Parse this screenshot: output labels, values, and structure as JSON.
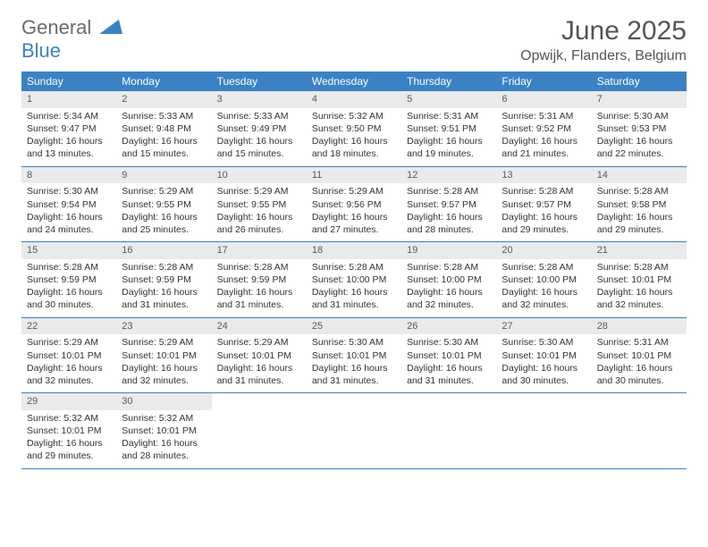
{
  "logo": {
    "word1": "General",
    "word2": "Blue"
  },
  "title": "June 2025",
  "location": "Opwijk, Flanders, Belgium",
  "colors": {
    "header_bg": "#3b82c4",
    "daynum_bg": "#e9eaeb",
    "text": "#333333"
  },
  "weekdays": [
    "Sunday",
    "Monday",
    "Tuesday",
    "Wednesday",
    "Thursday",
    "Friday",
    "Saturday"
  ],
  "days": [
    {
      "n": 1,
      "sunrise": "5:34 AM",
      "sunset": "9:47 PM",
      "dl1": "Daylight: 16 hours",
      "dl2": "and 13 minutes."
    },
    {
      "n": 2,
      "sunrise": "5:33 AM",
      "sunset": "9:48 PM",
      "dl1": "Daylight: 16 hours",
      "dl2": "and 15 minutes."
    },
    {
      "n": 3,
      "sunrise": "5:33 AM",
      "sunset": "9:49 PM",
      "dl1": "Daylight: 16 hours",
      "dl2": "and 15 minutes."
    },
    {
      "n": 4,
      "sunrise": "5:32 AM",
      "sunset": "9:50 PM",
      "dl1": "Daylight: 16 hours",
      "dl2": "and 18 minutes."
    },
    {
      "n": 5,
      "sunrise": "5:31 AM",
      "sunset": "9:51 PM",
      "dl1": "Daylight: 16 hours",
      "dl2": "and 19 minutes."
    },
    {
      "n": 6,
      "sunrise": "5:31 AM",
      "sunset": "9:52 PM",
      "dl1": "Daylight: 16 hours",
      "dl2": "and 21 minutes."
    },
    {
      "n": 7,
      "sunrise": "5:30 AM",
      "sunset": "9:53 PM",
      "dl1": "Daylight: 16 hours",
      "dl2": "and 22 minutes."
    },
    {
      "n": 8,
      "sunrise": "5:30 AM",
      "sunset": "9:54 PM",
      "dl1": "Daylight: 16 hours",
      "dl2": "and 24 minutes."
    },
    {
      "n": 9,
      "sunrise": "5:29 AM",
      "sunset": "9:55 PM",
      "dl1": "Daylight: 16 hours",
      "dl2": "and 25 minutes."
    },
    {
      "n": 10,
      "sunrise": "5:29 AM",
      "sunset": "9:55 PM",
      "dl1": "Daylight: 16 hours",
      "dl2": "and 26 minutes."
    },
    {
      "n": 11,
      "sunrise": "5:29 AM",
      "sunset": "9:56 PM",
      "dl1": "Daylight: 16 hours",
      "dl2": "and 27 minutes."
    },
    {
      "n": 12,
      "sunrise": "5:28 AM",
      "sunset": "9:57 PM",
      "dl1": "Daylight: 16 hours",
      "dl2": "and 28 minutes."
    },
    {
      "n": 13,
      "sunrise": "5:28 AM",
      "sunset": "9:57 PM",
      "dl1": "Daylight: 16 hours",
      "dl2": "and 29 minutes."
    },
    {
      "n": 14,
      "sunrise": "5:28 AM",
      "sunset": "9:58 PM",
      "dl1": "Daylight: 16 hours",
      "dl2": "and 29 minutes."
    },
    {
      "n": 15,
      "sunrise": "5:28 AM",
      "sunset": "9:59 PM",
      "dl1": "Daylight: 16 hours",
      "dl2": "and 30 minutes."
    },
    {
      "n": 16,
      "sunrise": "5:28 AM",
      "sunset": "9:59 PM",
      "dl1": "Daylight: 16 hours",
      "dl2": "and 31 minutes."
    },
    {
      "n": 17,
      "sunrise": "5:28 AM",
      "sunset": "9:59 PM",
      "dl1": "Daylight: 16 hours",
      "dl2": "and 31 minutes."
    },
    {
      "n": 18,
      "sunrise": "5:28 AM",
      "sunset": "10:00 PM",
      "dl1": "Daylight: 16 hours",
      "dl2": "and 31 minutes."
    },
    {
      "n": 19,
      "sunrise": "5:28 AM",
      "sunset": "10:00 PM",
      "dl1": "Daylight: 16 hours",
      "dl2": "and 32 minutes."
    },
    {
      "n": 20,
      "sunrise": "5:28 AM",
      "sunset": "10:00 PM",
      "dl1": "Daylight: 16 hours",
      "dl2": "and 32 minutes."
    },
    {
      "n": 21,
      "sunrise": "5:28 AM",
      "sunset": "10:01 PM",
      "dl1": "Daylight: 16 hours",
      "dl2": "and 32 minutes."
    },
    {
      "n": 22,
      "sunrise": "5:29 AM",
      "sunset": "10:01 PM",
      "dl1": "Daylight: 16 hours",
      "dl2": "and 32 minutes."
    },
    {
      "n": 23,
      "sunrise": "5:29 AM",
      "sunset": "10:01 PM",
      "dl1": "Daylight: 16 hours",
      "dl2": "and 32 minutes."
    },
    {
      "n": 24,
      "sunrise": "5:29 AM",
      "sunset": "10:01 PM",
      "dl1": "Daylight: 16 hours",
      "dl2": "and 31 minutes."
    },
    {
      "n": 25,
      "sunrise": "5:30 AM",
      "sunset": "10:01 PM",
      "dl1": "Daylight: 16 hours",
      "dl2": "and 31 minutes."
    },
    {
      "n": 26,
      "sunrise": "5:30 AM",
      "sunset": "10:01 PM",
      "dl1": "Daylight: 16 hours",
      "dl2": "and 31 minutes."
    },
    {
      "n": 27,
      "sunrise": "5:30 AM",
      "sunset": "10:01 PM",
      "dl1": "Daylight: 16 hours",
      "dl2": "and 30 minutes."
    },
    {
      "n": 28,
      "sunrise": "5:31 AM",
      "sunset": "10:01 PM",
      "dl1": "Daylight: 16 hours",
      "dl2": "and 30 minutes."
    },
    {
      "n": 29,
      "sunrise": "5:32 AM",
      "sunset": "10:01 PM",
      "dl1": "Daylight: 16 hours",
      "dl2": "and 29 minutes."
    },
    {
      "n": 30,
      "sunrise": "5:32 AM",
      "sunset": "10:01 PM",
      "dl1": "Daylight: 16 hours",
      "dl2": "and 28 minutes."
    }
  ],
  "labels": {
    "sunrise": "Sunrise:",
    "sunset": "Sunset:"
  },
  "layout": {
    "start_weekday_index": 0,
    "days_in_month": 30,
    "cols": 7
  }
}
